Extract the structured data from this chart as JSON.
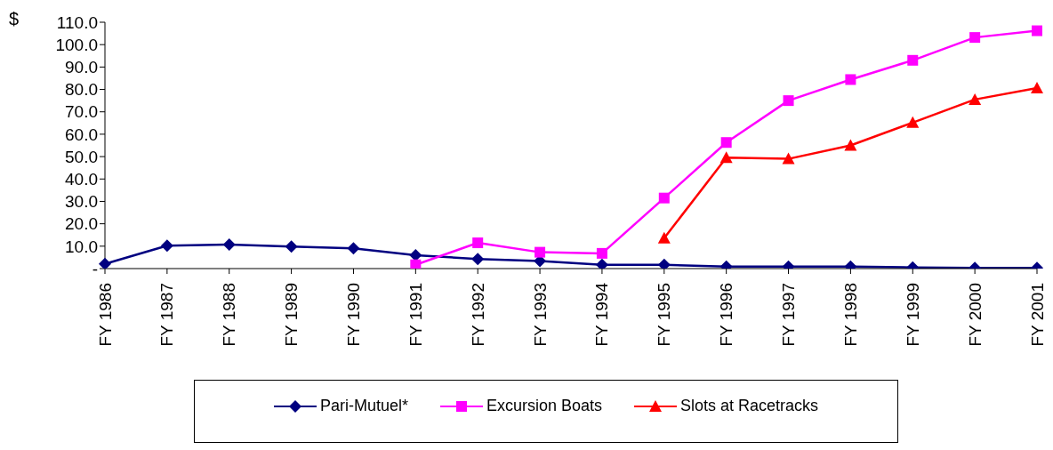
{
  "chart_data": {
    "type": "line",
    "ylabel": "$",
    "categories": [
      "FY 1986",
      "FY 1987",
      "FY 1988",
      "FY 1989",
      "FY 1990",
      "FY 1991",
      "FY 1992",
      "FY 1993",
      "FY 1994",
      "FY 1995",
      "FY 1996",
      "FY 1997",
      "FY 1998",
      "FY 1999",
      "FY 2000",
      "FY 2001"
    ],
    "ylim": [
      0,
      110
    ],
    "yticks": [
      {
        "value": 0,
        "label": "-"
      },
      {
        "value": 10,
        "label": "10.0"
      },
      {
        "value": 20,
        "label": "20.0"
      },
      {
        "value": 30,
        "label": "30.0"
      },
      {
        "value": 40,
        "label": "40.0"
      },
      {
        "value": 50,
        "label": "50.0"
      },
      {
        "value": 60,
        "label": "60.0"
      },
      {
        "value": 70,
        "label": "70.0"
      },
      {
        "value": 80,
        "label": "80.0"
      },
      {
        "value": 90,
        "label": "90.0"
      },
      {
        "value": 100,
        "label": "100.0"
      },
      {
        "value": 110,
        "label": "110.0"
      }
    ],
    "grid": false,
    "legend": "bottom",
    "line_style": "solid",
    "series": [
      {
        "name": "Pari-Mutuel*",
        "color": "#000080",
        "marker": "diamond",
        "values": [
          2.1,
          10.2,
          10.7,
          9.8,
          9.0,
          6.0,
          4.3,
          3.4,
          1.7,
          1.7,
          0.9,
          0.9,
          0.9,
          0.5,
          0.3,
          0.3
        ]
      },
      {
        "name": "Excursion  Boats",
        "color": "#ff00ff",
        "marker": "square",
        "values": [
          null,
          null,
          null,
          null,
          null,
          1.7,
          11.5,
          7.3,
          6.8,
          31.5,
          56.3,
          75.0,
          84.4,
          93.0,
          103.2,
          106.2
        ]
      },
      {
        "name": "Slots at Racetracks",
        "color": "#ff0000",
        "marker": "triangle",
        "values": [
          null,
          null,
          null,
          null,
          null,
          null,
          null,
          null,
          null,
          13.6,
          49.5,
          49.0,
          55.0,
          65.2,
          75.5,
          80.6
        ]
      }
    ]
  }
}
